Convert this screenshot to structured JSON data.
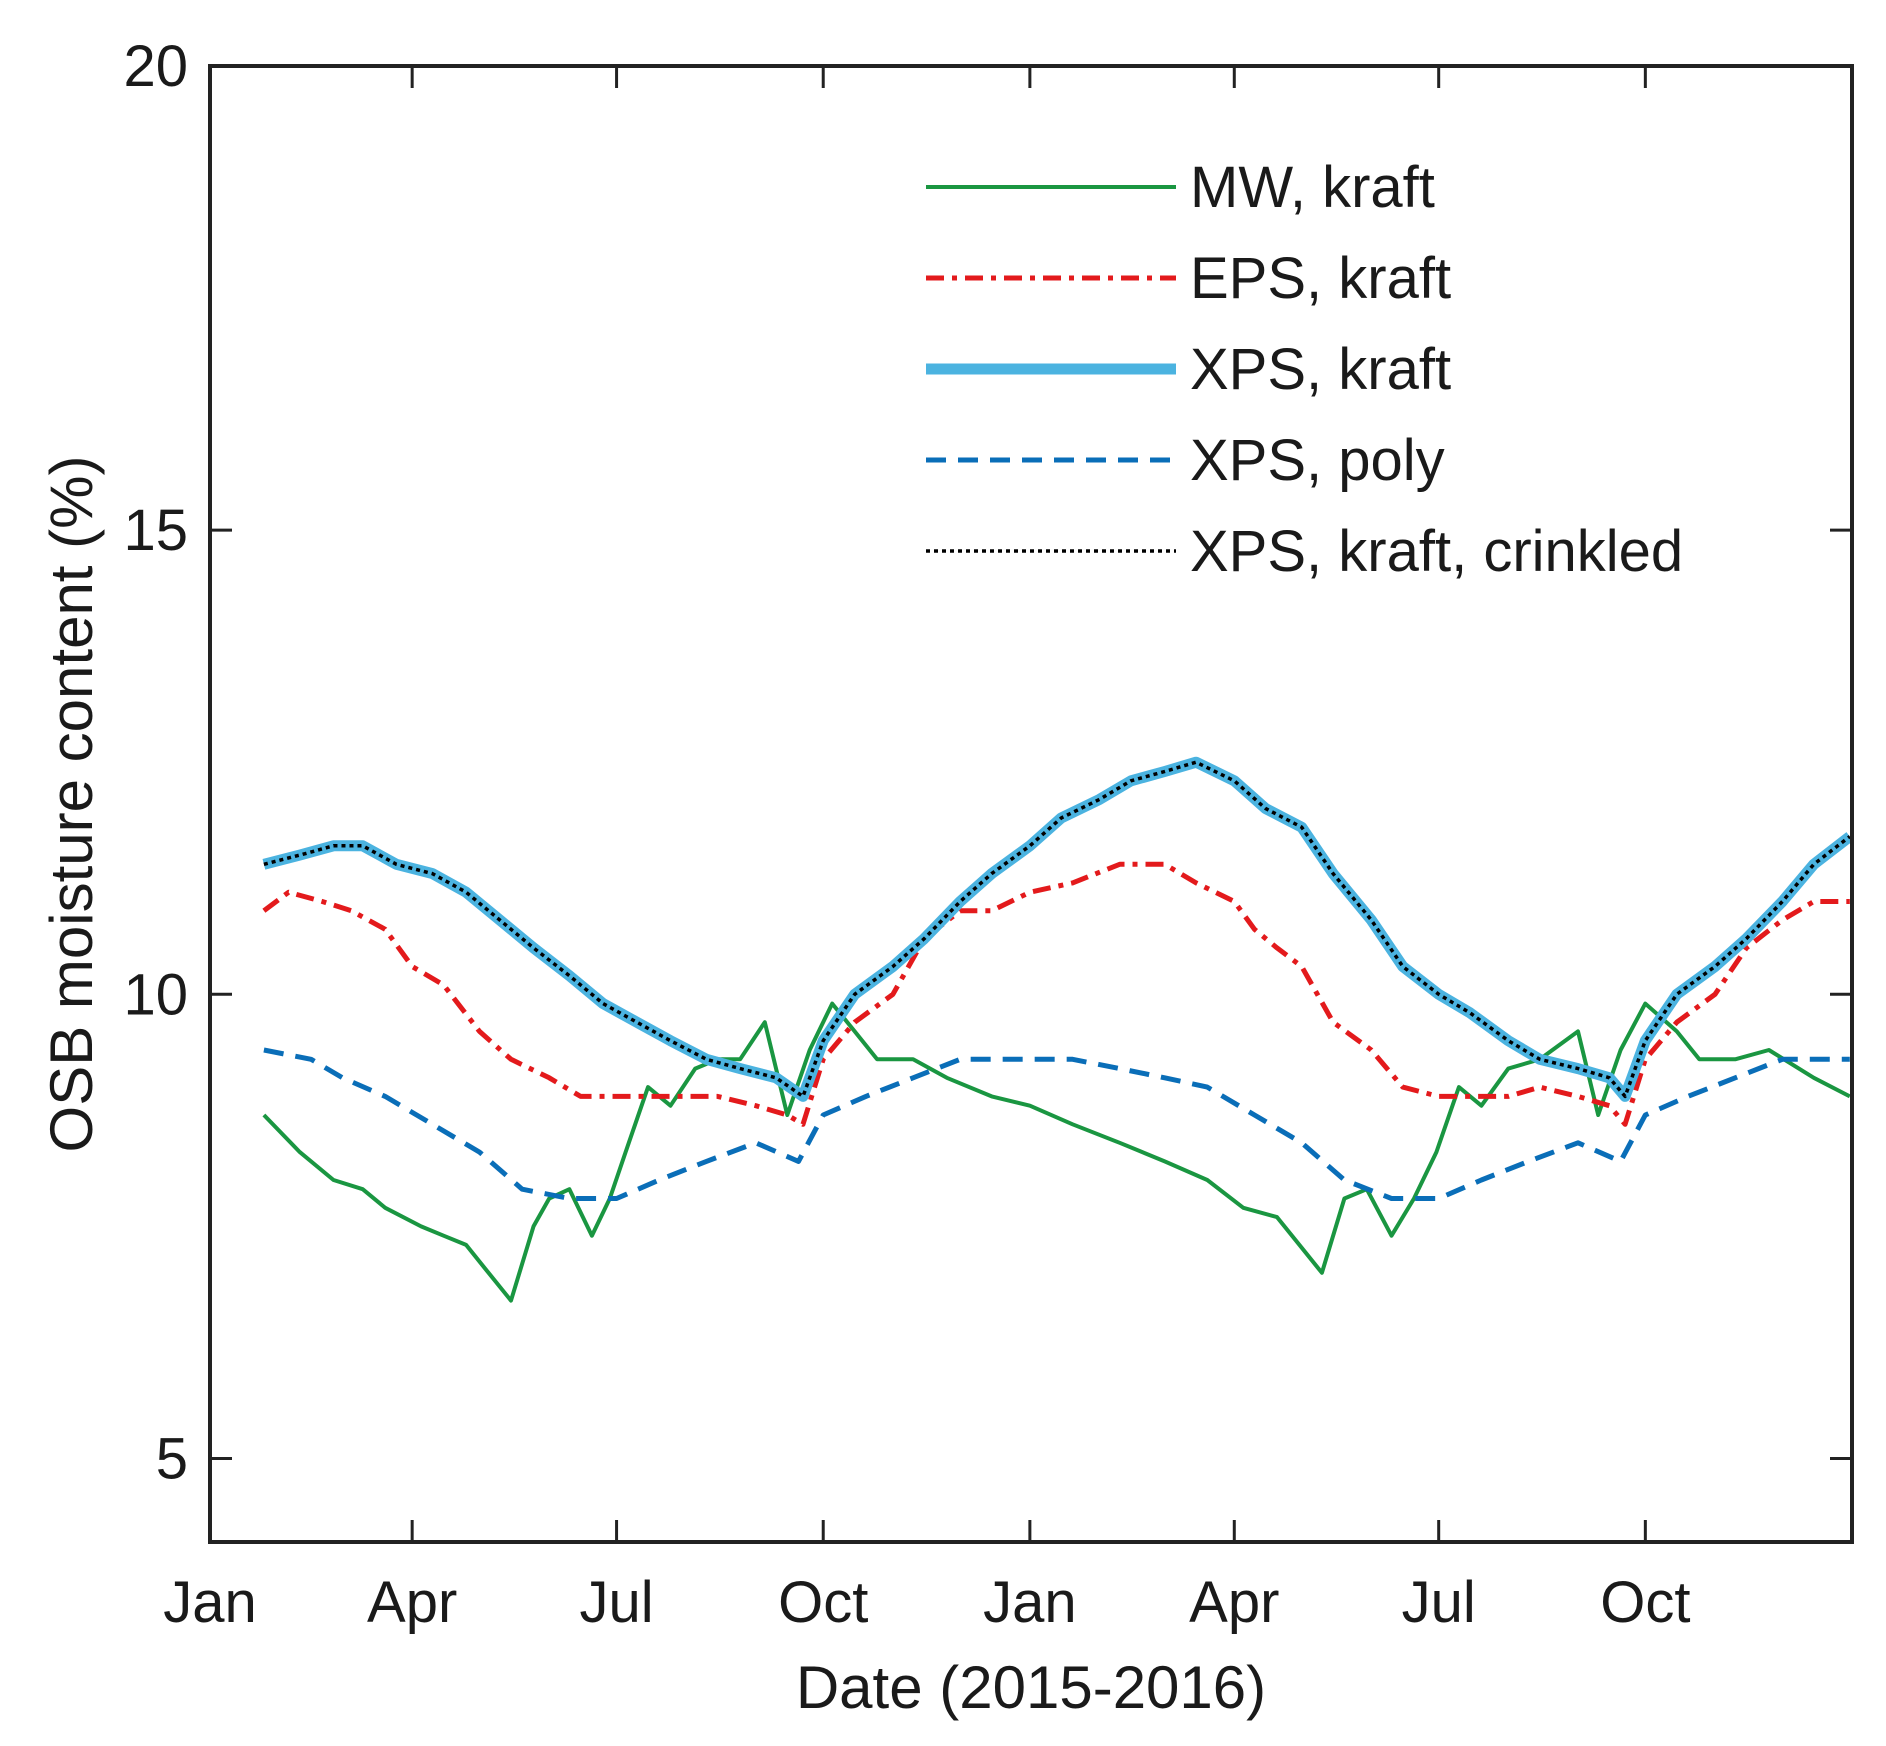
{
  "chart_data": {
    "type": "line",
    "xlabel": "Date (2015-2016)",
    "ylabel": "OSB moisture content (%)",
    "xlim": [
      "2015-01-01",
      "2016-12-31"
    ],
    "ylim": [
      4.1,
      20
    ],
    "x_ticks": [
      {
        "date": "2015-01-01",
        "label": "Jan"
      },
      {
        "date": "2015-04-01",
        "label": "Apr"
      },
      {
        "date": "2015-07-01",
        "label": "Jul"
      },
      {
        "date": "2015-10-01",
        "label": "Oct"
      },
      {
        "date": "2016-01-01",
        "label": "Jan"
      },
      {
        "date": "2016-04-01",
        "label": "Apr"
      },
      {
        "date": "2016-07-01",
        "label": "Jul"
      },
      {
        "date": "2016-10-01",
        "label": "Oct"
      }
    ],
    "y_ticks": [
      {
        "value": 5,
        "label": "5"
      },
      {
        "value": 10,
        "label": "10"
      },
      {
        "value": 15,
        "label": "15"
      },
      {
        "value": 20,
        "label": "20"
      }
    ],
    "grid": false,
    "legend_position": "top-right",
    "series": [
      {
        "name": "MW, kraft",
        "color": "#1a9641",
        "style": "solid",
        "x": [
          "2015-01-25",
          "2015-02-10",
          "2015-02-25",
          "2015-03-10",
          "2015-03-20",
          "2015-04-05",
          "2015-04-15",
          "2015-04-25",
          "2015-05-05",
          "2015-05-15",
          "2015-05-25",
          "2015-06-01",
          "2015-06-10",
          "2015-06-20",
          "2015-06-28",
          "2015-07-05",
          "2015-07-15",
          "2015-07-25",
          "2015-08-05",
          "2015-08-15",
          "2015-08-25",
          "2015-09-05",
          "2015-09-15",
          "2015-09-25",
          "2015-10-05",
          "2015-10-15",
          "2015-10-25",
          "2015-11-10",
          "2015-11-25",
          "2015-12-15",
          "2016-01-01",
          "2016-01-20",
          "2016-02-10",
          "2016-03-01",
          "2016-03-20",
          "2016-04-05",
          "2016-04-20",
          "2016-04-30",
          "2016-05-10",
          "2016-05-20",
          "2016-05-30",
          "2016-06-10",
          "2016-06-20",
          "2016-06-30",
          "2016-07-10",
          "2016-07-20",
          "2016-08-01",
          "2016-08-15",
          "2016-09-01",
          "2016-09-10",
          "2016-09-20",
          "2016-10-01",
          "2016-10-15",
          "2016-10-25",
          "2016-11-10",
          "2016-11-25",
          "2016-12-15",
          "2016-12-31"
        ],
        "values": [
          8.7,
          8.3,
          8.0,
          7.9,
          7.7,
          7.5,
          7.4,
          7.3,
          7.0,
          6.7,
          7.5,
          7.8,
          7.9,
          7.4,
          7.8,
          8.3,
          9.0,
          8.8,
          9.2,
          9.3,
          9.3,
          9.7,
          8.7,
          9.4,
          9.9,
          9.6,
          9.3,
          9.3,
          9.1,
          8.9,
          8.8,
          8.6,
          8.4,
          8.2,
          8.0,
          7.7,
          7.6,
          7.3,
          7.0,
          7.8,
          7.9,
          7.4,
          7.8,
          8.3,
          9.0,
          8.8,
          9.2,
          9.3,
          9.6,
          8.7,
          9.4,
          9.9,
          9.6,
          9.3,
          9.3,
          9.4,
          9.1,
          8.9
        ]
      },
      {
        "name": "EPS, kraft",
        "color": "#e31a1c",
        "style": "dashdot",
        "x": [
          "2015-01-25",
          "2015-02-05",
          "2015-02-20",
          "2015-03-05",
          "2015-03-20",
          "2015-04-01",
          "2015-04-15",
          "2015-05-01",
          "2015-05-15",
          "2015-06-01",
          "2015-06-15",
          "2015-07-01",
          "2015-07-15",
          "2015-08-01",
          "2015-08-15",
          "2015-09-01",
          "2015-09-15",
          "2015-09-22",
          "2015-10-01",
          "2015-10-15",
          "2015-11-01",
          "2015-11-15",
          "2015-12-01",
          "2015-12-15",
          "2016-01-01",
          "2016-01-20",
          "2016-02-10",
          "2016-03-01",
          "2016-03-15",
          "2016-04-01",
          "2016-04-10",
          "2016-04-20",
          "2016-05-01",
          "2016-05-15",
          "2016-06-01",
          "2016-06-15",
          "2016-07-01",
          "2016-07-15",
          "2016-08-01",
          "2016-08-15",
          "2016-09-01",
          "2016-09-15",
          "2016-09-22",
          "2016-10-01",
          "2016-10-15",
          "2016-11-01",
          "2016-11-15",
          "2016-12-01",
          "2016-12-15",
          "2016-12-31"
        ],
        "values": [
          10.9,
          11.1,
          11.0,
          10.9,
          10.7,
          10.3,
          10.1,
          9.6,
          9.3,
          9.1,
          8.9,
          8.9,
          8.9,
          8.9,
          8.9,
          8.8,
          8.7,
          8.6,
          9.3,
          9.7,
          10.0,
          10.6,
          10.9,
          10.9,
          11.1,
          11.2,
          11.4,
          11.4,
          11.2,
          11.0,
          10.7,
          10.5,
          10.3,
          9.7,
          9.4,
          9.0,
          8.9,
          8.9,
          8.9,
          9.0,
          8.9,
          8.8,
          8.6,
          9.3,
          9.7,
          10.0,
          10.5,
          10.8,
          11.0,
          11.0
        ]
      },
      {
        "name": "XPS, kraft",
        "color": "#4bb3e0",
        "style": "thick",
        "x": [
          "2015-01-25",
          "2015-02-10",
          "2015-02-25",
          "2015-03-10",
          "2015-03-25",
          "2015-04-10",
          "2015-04-25",
          "2015-05-10",
          "2015-05-25",
          "2015-06-10",
          "2015-06-25",
          "2015-07-10",
          "2015-07-25",
          "2015-08-10",
          "2015-08-25",
          "2015-09-10",
          "2015-09-22",
          "2015-10-01",
          "2015-10-15",
          "2015-11-01",
          "2015-11-15",
          "2015-12-01",
          "2015-12-15",
          "2016-01-01",
          "2016-01-15",
          "2016-02-01",
          "2016-02-15",
          "2016-03-01",
          "2016-03-15",
          "2016-04-01",
          "2016-04-15",
          "2016-05-01",
          "2016-05-15",
          "2016-06-01",
          "2016-06-15",
          "2016-07-01",
          "2016-07-15",
          "2016-08-01",
          "2016-08-15",
          "2016-09-01",
          "2016-09-15",
          "2016-09-22",
          "2016-10-01",
          "2016-10-15",
          "2016-11-01",
          "2016-11-15",
          "2016-12-01",
          "2016-12-15",
          "2016-12-31"
        ],
        "values": [
          11.4,
          11.5,
          11.6,
          11.6,
          11.4,
          11.3,
          11.1,
          10.8,
          10.5,
          10.2,
          9.9,
          9.7,
          9.5,
          9.3,
          9.2,
          9.1,
          8.9,
          9.5,
          10.0,
          10.3,
          10.6,
          11.0,
          11.3,
          11.6,
          11.9,
          12.1,
          12.3,
          12.4,
          12.5,
          12.3,
          12.0,
          11.8,
          11.3,
          10.8,
          10.3,
          10.0,
          9.8,
          9.5,
          9.3,
          9.2,
          9.1,
          8.9,
          9.5,
          10.0,
          10.3,
          10.6,
          11.0,
          11.4,
          11.7
        ]
      },
      {
        "name": "XPS, poly",
        "color": "#0a6eb8",
        "style": "dashed",
        "x": [
          "2015-01-25",
          "2015-02-15",
          "2015-03-01",
          "2015-03-20",
          "2015-04-10",
          "2015-05-01",
          "2015-05-20",
          "2015-06-10",
          "2015-07-01",
          "2015-07-20",
          "2015-08-10",
          "2015-09-01",
          "2015-09-20",
          "2015-10-01",
          "2015-10-20",
          "2015-11-10",
          "2015-12-01",
          "2016-01-01",
          "2016-01-20",
          "2016-02-10",
          "2016-03-01",
          "2016-03-20",
          "2016-04-10",
          "2016-05-01",
          "2016-05-20",
          "2016-06-10",
          "2016-07-01",
          "2016-07-20",
          "2016-08-10",
          "2016-09-01",
          "2016-09-20",
          "2016-10-01",
          "2016-10-20",
          "2016-11-10",
          "2016-12-01",
          "2016-12-31"
        ],
        "values": [
          9.4,
          9.3,
          9.1,
          8.9,
          8.6,
          8.3,
          7.9,
          7.8,
          7.8,
          8.0,
          8.2,
          8.4,
          8.2,
          8.7,
          8.9,
          9.1,
          9.3,
          9.3,
          9.3,
          9.2,
          9.1,
          9.0,
          8.7,
          8.4,
          8.0,
          7.8,
          7.8,
          8.0,
          8.2,
          8.4,
          8.2,
          8.7,
          8.9,
          9.1,
          9.3,
          9.3
        ]
      },
      {
        "name": "XPS, kraft, crinkled",
        "color": "#000000",
        "style": "dotted",
        "x": [
          "2015-01-25",
          "2015-02-10",
          "2015-02-25",
          "2015-03-10",
          "2015-03-25",
          "2015-04-10",
          "2015-04-25",
          "2015-05-10",
          "2015-05-25",
          "2015-06-10",
          "2015-06-25",
          "2015-07-10",
          "2015-07-25",
          "2015-08-10",
          "2015-08-25",
          "2015-09-10",
          "2015-09-22",
          "2015-10-01",
          "2015-10-15",
          "2015-11-01",
          "2015-11-15",
          "2015-12-01",
          "2015-12-15",
          "2016-01-01",
          "2016-01-15",
          "2016-02-01",
          "2016-02-15",
          "2016-03-01",
          "2016-03-15",
          "2016-04-01",
          "2016-04-15",
          "2016-05-01",
          "2016-05-15",
          "2016-06-01",
          "2016-06-15",
          "2016-07-01",
          "2016-07-15",
          "2016-08-01",
          "2016-08-15",
          "2016-09-01",
          "2016-09-15",
          "2016-09-22",
          "2016-10-01",
          "2016-10-15",
          "2016-11-01",
          "2016-11-15",
          "2016-12-01",
          "2016-12-15",
          "2016-12-31"
        ],
        "values": [
          11.4,
          11.5,
          11.6,
          11.6,
          11.4,
          11.3,
          11.1,
          10.8,
          10.5,
          10.2,
          9.9,
          9.7,
          9.5,
          9.3,
          9.2,
          9.1,
          8.9,
          9.5,
          10.0,
          10.3,
          10.6,
          11.0,
          11.3,
          11.6,
          11.9,
          12.1,
          12.3,
          12.4,
          12.5,
          12.3,
          12.0,
          11.8,
          11.3,
          10.8,
          10.3,
          10.0,
          9.8,
          9.5,
          9.3,
          9.2,
          9.1,
          8.9,
          9.5,
          10.0,
          10.3,
          10.6,
          11.0,
          11.4,
          11.7
        ]
      }
    ]
  }
}
